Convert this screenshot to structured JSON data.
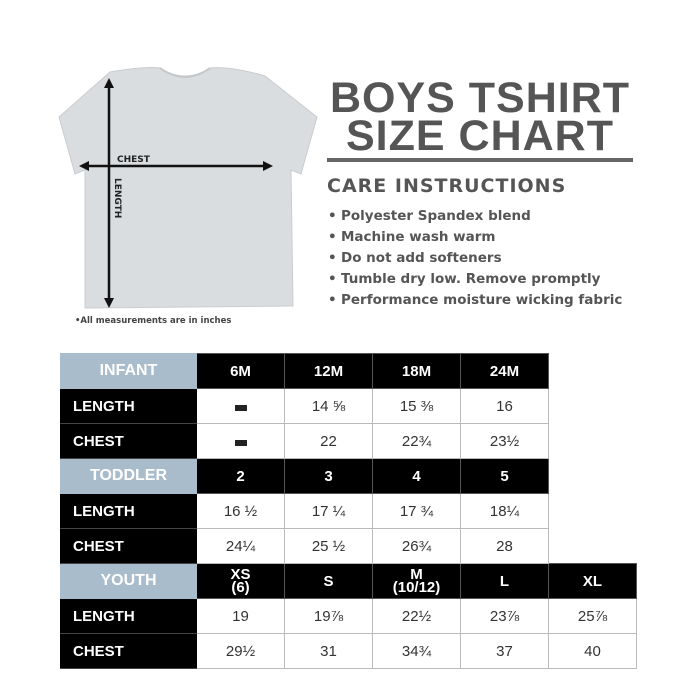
{
  "diagram": {
    "chest_label": "CHEST",
    "length_label": "LENGTH",
    "note": "•All measurements are in inches"
  },
  "title": {
    "line1": "BOYS TSHIRT",
    "line2": "SIZE CHART"
  },
  "care": {
    "heading": "CARE INSTRUCTIONS",
    "items": [
      "Polyester Spandex blend",
      "Machine wash warm",
      "Do not add softeners",
      "Tumble dry low. Remove promptly",
      "Performance moisture wicking fabric"
    ]
  },
  "colors": {
    "group_header": "#a9bccc",
    "title": "#555555",
    "size_header": "#000000"
  },
  "table": {
    "infant": {
      "label": "INFANT",
      "sizes": [
        "6M",
        "12M",
        "18M",
        "24M"
      ],
      "length_label": "LENGTH",
      "length": [
        "—",
        "14 ⅝",
        "15 ⅜",
        "16"
      ],
      "chest_label": "CHEST",
      "chest": [
        "—",
        "22",
        "22¾",
        "23½"
      ]
    },
    "toddler": {
      "label": "TODDLER",
      "sizes": [
        "2",
        "3",
        "4",
        "5"
      ],
      "length_label": "LENGTH",
      "length": [
        "16 ½",
        "17 ¼",
        "17 ¾",
        "18¼"
      ],
      "chest_label": "CHEST",
      "chest": [
        "24¼",
        "25 ½",
        "26¾",
        "28"
      ]
    },
    "youth": {
      "label": "YOUTH",
      "sizes": [
        "XS",
        "S",
        "M",
        "L",
        "XL"
      ],
      "size_subs": [
        "(6)",
        "",
        "(10/12)",
        "",
        ""
      ],
      "length_label": "LENGTH",
      "length": [
        "19",
        "19⅞",
        "22½",
        "23⅞",
        "25⅞"
      ],
      "chest_label": "CHEST",
      "chest": [
        "29½",
        "31",
        "34¾",
        "37",
        "40"
      ]
    }
  }
}
